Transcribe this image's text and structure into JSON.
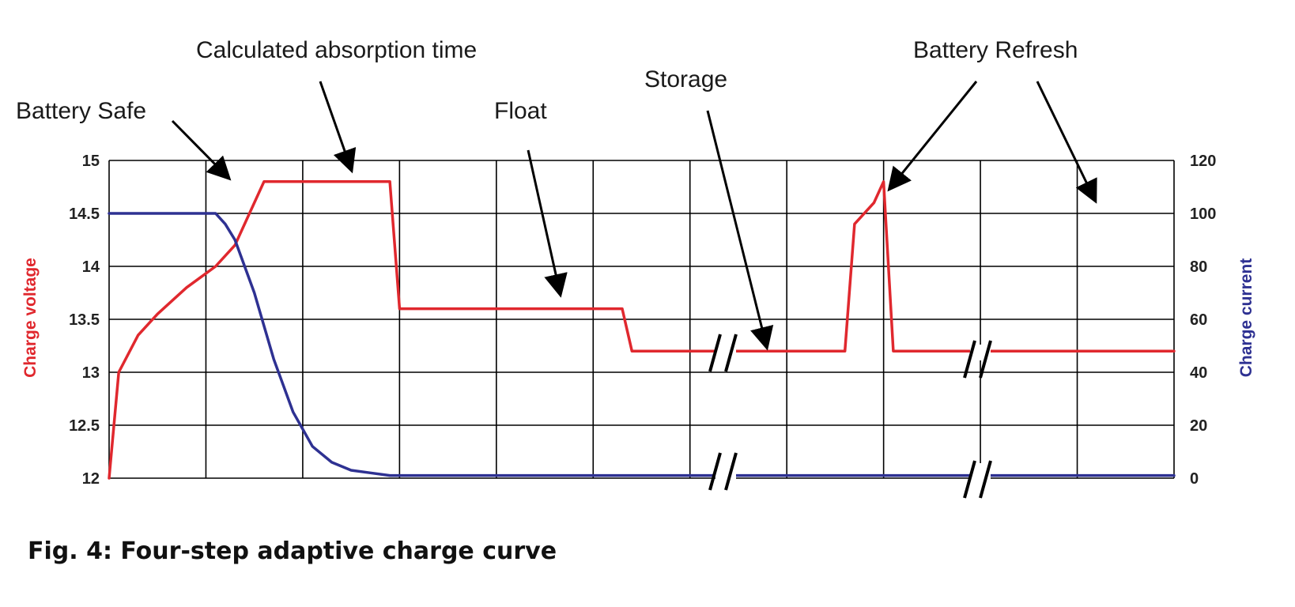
{
  "chart_data": {
    "type": "line",
    "caption": "Fig. 4:  Four-step adaptive charge curve",
    "y_left": {
      "label": "Charge voltage",
      "ticks": [
        "12",
        "12.5",
        "13",
        "13.5",
        "14",
        "14.5",
        "15"
      ],
      "range": [
        12,
        15
      ],
      "color": "#e0282e"
    },
    "y_right": {
      "label": "Charge current",
      "ticks": [
        "0",
        "20",
        "40",
        "60",
        "80",
        "100",
        "120"
      ],
      "range": [
        0,
        120
      ],
      "color": "#2e3192"
    },
    "x_range": [
      0,
      11
    ],
    "grid": true,
    "series": [
      {
        "axis": "left",
        "color": "#e0282e",
        "x": [
          0,
          0.1,
          0.3,
          0.5,
          0.8,
          1.1,
          1.3,
          1.6,
          2.9,
          3.0,
          5.3,
          5.4,
          7.6,
          7.7,
          7.9,
          8.0,
          8.1,
          8.3,
          8.9,
          9.0,
          9.1,
          9.3,
          9.6,
          9.8,
          11.0
        ],
        "values": [
          12.0,
          13.0,
          13.35,
          13.55,
          13.8,
          14.0,
          14.2,
          14.8,
          14.8,
          13.6,
          13.6,
          13.2,
          13.2,
          14.4,
          14.6,
          14.8,
          13.2,
          13.2,
          13.2,
          13.2,
          13.2,
          13.2,
          13.2,
          13.2,
          13.2
        ]
      },
      {
        "axis": "right",
        "color": "#2e3192",
        "x": [
          0,
          1.1,
          1.2,
          1.3,
          1.5,
          1.7,
          1.9,
          2.1,
          2.3,
          2.5,
          2.7,
          2.9,
          3.0,
          3.2,
          7.4,
          7.5,
          7.6,
          7.7,
          7.8,
          7.9,
          8.0,
          8.1,
          8.3,
          8.5,
          8.9,
          9.0,
          9.1,
          9.2,
          9.3,
          9.4,
          9.6,
          11.0
        ],
        "values": [
          100,
          100,
          96,
          90,
          70,
          45,
          25,
          12,
          6,
          3,
          2,
          1,
          1,
          1,
          1,
          1,
          1,
          1,
          1,
          1,
          1,
          1,
          1,
          1,
          1,
          1,
          1,
          1,
          1,
          1,
          1,
          1
        ]
      }
    ],
    "annotations": [
      {
        "text": "Battery Safe"
      },
      {
        "text": "Calculated absorption time"
      },
      {
        "text": "Float"
      },
      {
        "text": "Storage"
      },
      {
        "text": "Battery Refresh"
      }
    ]
  }
}
